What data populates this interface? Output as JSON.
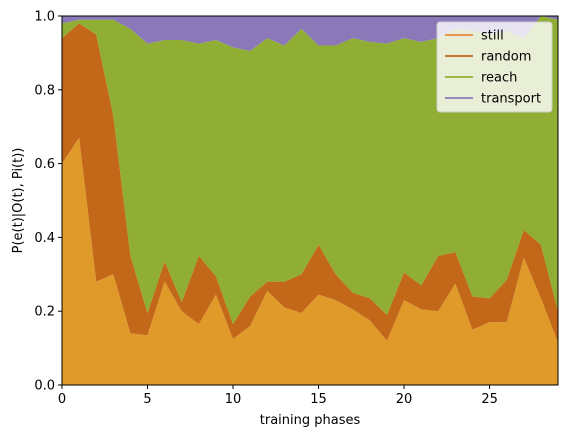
{
  "chart_data": {
    "type": "area",
    "stacked": true,
    "xlabel": "training phases",
    "ylabel": "P(e(t)|O(t), Pi(t))",
    "xlim": [
      0,
      29
    ],
    "ylim": [
      0,
      1
    ],
    "x": [
      0,
      1,
      2,
      3,
      4,
      5,
      6,
      7,
      8,
      9,
      10,
      11,
      12,
      13,
      14,
      15,
      16,
      17,
      18,
      19,
      20,
      21,
      22,
      23,
      24,
      25,
      26,
      27,
      28,
      29
    ],
    "xticks": [
      0,
      5,
      10,
      15,
      20,
      25
    ],
    "yticks": [
      0.0,
      0.2,
      0.4,
      0.6,
      0.8,
      1.0
    ],
    "ytick_labels": [
      "0.0",
      "0.2",
      "0.4",
      "0.6",
      "0.8",
      "1.0"
    ],
    "legend_position": "top-right",
    "series": [
      {
        "name": "still",
        "legend_color": "#e8893a",
        "fill_color": "#e09a2a",
        "values": [
          0.6,
          0.67,
          0.28,
          0.3,
          0.14,
          0.135,
          0.28,
          0.2,
          0.165,
          0.245,
          0.125,
          0.16,
          0.255,
          0.21,
          0.195,
          0.245,
          0.23,
          0.205,
          0.175,
          0.12,
          0.23,
          0.205,
          0.2,
          0.275,
          0.15,
          0.17,
          0.17,
          0.345,
          0.235,
          0.115
        ]
      },
      {
        "name": "random",
        "legend_color": "#c0651a",
        "fill_color": "#c26818",
        "values": [
          0.34,
          0.31,
          0.67,
          0.43,
          0.21,
          0.06,
          0.055,
          0.025,
          0.185,
          0.05,
          0.04,
          0.08,
          0.025,
          0.07,
          0.105,
          0.135,
          0.07,
          0.045,
          0.06,
          0.07,
          0.075,
          0.065,
          0.15,
          0.085,
          0.09,
          0.065,
          0.115,
          0.075,
          0.145,
          0.085
        ]
      },
      {
        "name": "reach",
        "legend_color": "#8cb033",
        "fill_color": "#8fae33",
        "values": [
          0.04,
          0.01,
          0.04,
          0.26,
          0.615,
          0.73,
          0.6,
          0.71,
          0.575,
          0.64,
          0.75,
          0.665,
          0.66,
          0.64,
          0.665,
          0.54,
          0.62,
          0.69,
          0.695,
          0.735,
          0.635,
          0.66,
          0.59,
          0.605,
          0.72,
          0.715,
          0.675,
          0.52,
          0.62,
          0.79
        ]
      },
      {
        "name": "transport",
        "legend_color": "#8a78b8",
        "fill_color": "#8a78b8",
        "values": [
          0.02,
          0.01,
          0.01,
          0.01,
          0.035,
          0.075,
          0.065,
          0.065,
          0.075,
          0.065,
          0.085,
          0.095,
          0.06,
          0.08,
          0.035,
          0.08,
          0.08,
          0.06,
          0.07,
          0.075,
          0.06,
          0.07,
          0.06,
          0.035,
          0.04,
          0.05,
          0.04,
          0.06,
          0.0,
          0.01
        ]
      }
    ]
  }
}
